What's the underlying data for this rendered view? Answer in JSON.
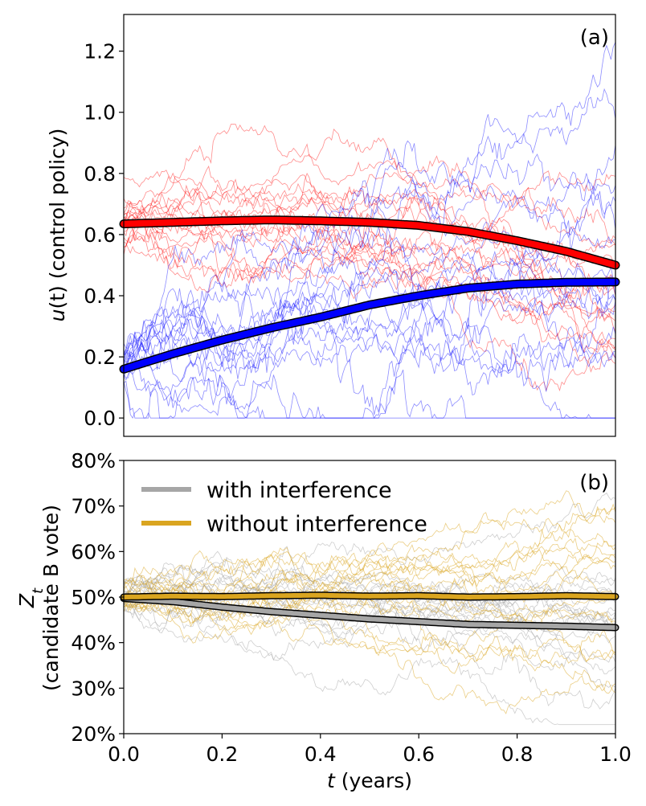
{
  "chart_data": [
    {
      "panel": "(a)",
      "type": "line",
      "ylabel_var": "u",
      "ylabel_arg": "(t)",
      "ylabel_rest": " (control policy)",
      "xlim": [
        0,
        1
      ],
      "ylim": [
        -0.06,
        1.32
      ],
      "yticks": [
        0.0,
        0.2,
        0.4,
        0.6,
        0.8,
        1.0,
        1.2
      ],
      "ytick_labels": [
        "0.0",
        "0.2",
        "0.4",
        "0.6",
        "0.8",
        "1.0",
        "1.2"
      ],
      "series": [
        {
          "name": "mean control (red)",
          "color": "#ff0000",
          "x": [
            0.0,
            0.1,
            0.2,
            0.3,
            0.4,
            0.5,
            0.6,
            0.7,
            0.8,
            0.9,
            1.0
          ],
          "values": [
            0.635,
            0.64,
            0.645,
            0.648,
            0.645,
            0.64,
            0.63,
            0.61,
            0.58,
            0.545,
            0.5
          ]
        },
        {
          "name": "mean control (blue)",
          "color": "#0000ff",
          "x": [
            0.0,
            0.1,
            0.2,
            0.3,
            0.4,
            0.5,
            0.6,
            0.7,
            0.8,
            0.9,
            1.0
          ],
          "values": [
            0.16,
            0.21,
            0.255,
            0.295,
            0.33,
            0.37,
            0.4,
            0.425,
            0.438,
            0.444,
            0.445
          ]
        }
      ],
      "sample_paths": {
        "count_per_color": 18,
        "colors": [
          "#ff0000",
          "#0000ff"
        ],
        "description": "individual noisy sample paths drawn around each mean curve"
      }
    },
    {
      "panel": "(b)",
      "type": "line",
      "ylabel_var": "Z",
      "ylabel_sub": "t",
      "ylabel_line2": "(candidate B vote)",
      "xlabel_var": "t",
      "xlabel_rest": " (years)",
      "xlim": [
        0,
        1
      ],
      "ylim": [
        0.2,
        0.8
      ],
      "xticks": [
        0.0,
        0.2,
        0.4,
        0.6,
        0.8,
        1.0
      ],
      "xtick_labels": [
        "0.0",
        "0.2",
        "0.4",
        "0.6",
        "0.8",
        "1.0"
      ],
      "yticks": [
        0.2,
        0.3,
        0.4,
        0.5,
        0.6,
        0.7,
        0.8
      ],
      "ytick_labels": [
        "20%",
        "30%",
        "40%",
        "50%",
        "60%",
        "70%",
        "80%"
      ],
      "legend_position": "top-left",
      "series": [
        {
          "name": "with interference",
          "color": "#a6a6a6",
          "x": [
            0.0,
            0.1,
            0.2,
            0.3,
            0.4,
            0.5,
            0.6,
            0.7,
            0.8,
            0.9,
            1.0
          ],
          "values": [
            0.497,
            0.49,
            0.478,
            0.468,
            0.46,
            0.452,
            0.446,
            0.44,
            0.438,
            0.436,
            0.433
          ]
        },
        {
          "name": "without interference",
          "color": "#daa520",
          "x": [
            0.0,
            0.1,
            0.2,
            0.3,
            0.4,
            0.5,
            0.6,
            0.7,
            0.8,
            0.9,
            1.0
          ],
          "values": [
            0.5,
            0.502,
            0.501,
            0.503,
            0.504,
            0.502,
            0.503,
            0.5,
            0.501,
            0.503,
            0.501
          ]
        }
      ],
      "sample_paths": {
        "count_per_color": 18,
        "colors": [
          "#a6a6a6",
          "#daa520"
        ],
        "description": "individual noisy sample paths drawn around each mean curve"
      }
    }
  ]
}
